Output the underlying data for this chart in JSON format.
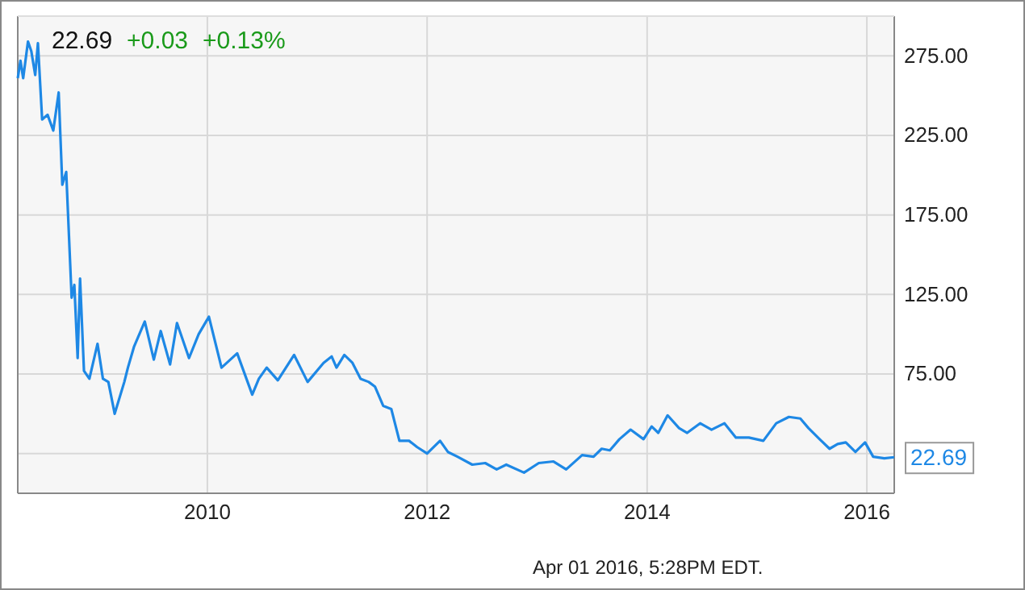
{
  "chart_data": {
    "type": "line",
    "x": [
      "2008-04-11",
      "2008-04-20",
      "2008-04-29",
      "2008-05-15",
      "2008-05-26",
      "2008-06-08",
      "2008-06-17",
      "2008-07-01",
      "2008-07-19",
      "2008-08-07",
      "2008-08-25",
      "2008-09-06",
      "2008-09-19",
      "2008-10-07",
      "2008-10-16",
      "2008-10-27",
      "2008-11-04",
      "2008-11-17",
      "2008-12-05",
      "2009-01-01",
      "2009-01-19",
      "2009-02-06",
      "2009-02-27",
      "2009-03-31",
      "2009-04-12",
      "2009-05-02",
      "2009-06-07",
      "2009-07-07",
      "2009-07-30",
      "2009-08-30",
      "2009-09-22",
      "2009-11-01",
      "2009-12-03",
      "2010-01-06",
      "2010-02-17",
      "2010-04-10",
      "2010-05-30",
      "2010-06-21",
      "2010-07-17",
      "2010-08-23",
      "2010-10-16",
      "2010-11-30",
      "2011-01-22",
      "2011-02-18",
      "2011-03-06",
      "2011-04-01",
      "2011-04-28",
      "2011-05-25",
      "2011-06-21",
      "2011-07-12",
      "2011-08-08",
      "2011-09-04",
      "2011-10-01",
      "2011-11-02",
      "2011-11-29",
      "2012-01-01",
      "2012-02-13",
      "2012-03-10",
      "2012-04-11",
      "2012-05-30",
      "2012-07-12",
      "2012-08-19",
      "2012-09-20",
      "2012-11-18",
      "2013-01-06",
      "2013-02-24",
      "2013-04-07",
      "2013-05-30",
      "2013-07-07",
      "2013-08-03",
      "2013-08-30",
      "2013-10-01",
      "2013-11-07",
      "2013-12-20",
      "2014-01-16",
      "2014-02-07",
      "2014-03-10",
      "2014-04-17",
      "2014-05-14",
      "2014-06-26",
      "2014-08-03",
      "2014-09-15",
      "2014-10-23",
      "2014-12-05",
      "2015-01-22",
      "2015-03-06",
      "2015-04-17",
      "2015-05-25",
      "2015-06-21",
      "2015-07-28",
      "2015-08-30",
      "2015-09-26",
      "2015-10-23",
      "2015-11-24",
      "2015-12-26",
      "2016-01-22",
      "2016-02-28",
      "2016-04-01"
    ],
    "series": [
      {
        "color": "#1e88e5",
        "values": [
          261,
          272,
          261,
          284,
          278,
          263,
          283,
          235,
          238,
          228,
          252,
          194,
          202,
          123,
          131,
          85,
          135,
          77,
          72,
          94,
          72,
          70,
          50,
          70,
          79,
          92,
          108,
          84,
          102,
          81,
          107,
          85,
          100,
          111,
          79,
          88,
          62,
          72,
          79,
          71,
          87,
          70,
          82,
          86,
          79,
          87,
          82,
          72,
          70,
          67,
          55,
          53,
          33,
          33,
          29,
          25,
          33,
          26,
          23,
          18,
          19,
          15,
          18,
          13,
          19,
          20,
          15,
          24,
          23,
          28,
          27,
          34,
          40,
          34,
          42,
          38,
          49,
          41,
          38,
          44,
          40,
          44,
          35,
          35,
          33,
          44,
          48,
          47,
          41,
          34,
          28,
          31,
          32,
          26,
          32,
          23,
          22,
          22.69
        ]
      }
    ],
    "xlim": [
      "2008-04-11",
      "2016-04-01"
    ],
    "xticks": [
      "2010",
      "2012",
      "2014",
      "2016"
    ],
    "ylim": [
      0,
      300
    ],
    "yticks": [
      {
        "value": 25,
        "label": null
      },
      {
        "value": 75,
        "label": "75.00"
      },
      {
        "value": 125,
        "label": "125.00"
      },
      {
        "value": 175,
        "label": "175.00"
      },
      {
        "value": 225,
        "label": "225.00"
      },
      {
        "value": 275,
        "label": "275.00"
      }
    ],
    "grid": true,
    "line_style": "solid",
    "marker": "none",
    "annotations": [
      "22.69",
      "+0.03",
      "+0.13%",
      {
        "text": "22.69",
        "x": "2016-04-01",
        "y": 22.69
      },
      "Apr 01 2016, 5:28PM EDT."
    ]
  }
}
